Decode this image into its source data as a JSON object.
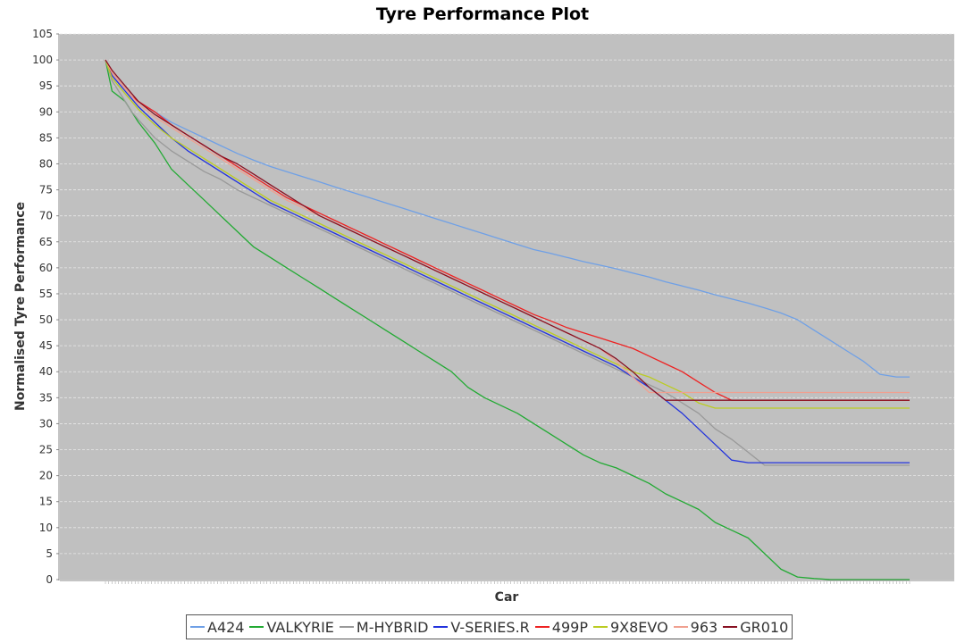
{
  "chart_data": {
    "type": "line",
    "title": "Tyre Performance Plot",
    "xlabel": "Car",
    "ylabel": "Normalised Tyre Performance",
    "ylim": [
      0,
      105
    ],
    "yticks": [
      "0",
      "5",
      "10",
      "15",
      "20",
      "25",
      "30",
      "35",
      "40",
      "45",
      "50",
      "55",
      "60",
      "65",
      "70",
      "75",
      "80",
      "85",
      "90",
      "95",
      "100",
      "105"
    ],
    "x_tick_labels_visible": false,
    "x": [
      0,
      2,
      4,
      6,
      8,
      10,
      15,
      20,
      25,
      30,
      35,
      40,
      45,
      50,
      55,
      60,
      65,
      70,
      75,
      80,
      85,
      90,
      95,
      100,
      105,
      110,
      115,
      120,
      125,
      130,
      135,
      140,
      145,
      150,
      155,
      160,
      165,
      170,
      175,
      180,
      185,
      190,
      195,
      200,
      205,
      210,
      215,
      220,
      225,
      230,
      235,
      240,
      244
    ],
    "grid": true,
    "background": "#c0c0c0",
    "gridline_color": "#e8e8e8",
    "legend_position": "bottom",
    "series": [
      {
        "name": "A424",
        "color": "#6fa0e6",
        "values": [
          100,
          97.5,
          96,
          94.5,
          93,
          92,
          90,
          88,
          86.5,
          85,
          83.5,
          82,
          80.7,
          79.5,
          78.5,
          77.5,
          76.5,
          75.5,
          74.5,
          73.5,
          72.5,
          71.5,
          70.5,
          69.5,
          68.5,
          67.5,
          66.5,
          65.5,
          64.5,
          63.5,
          62.8,
          62,
          61.2,
          60.5,
          59.8,
          59,
          58.2,
          57.3,
          56.5,
          55.7,
          54.8,
          54,
          53.2,
          52.3,
          51.3,
          50,
          48,
          46,
          44,
          42,
          39.5,
          39,
          39
        ]
      },
      {
        "name": "VALKYRIE",
        "color": "#22aa33",
        "values": [
          100,
          94,
          93,
          92,
          90,
          88,
          84,
          79,
          76,
          73,
          70,
          67,
          64,
          62,
          60,
          58,
          56,
          54,
          52,
          50,
          48,
          46,
          44,
          42,
          40,
          37,
          35,
          33.5,
          32,
          30,
          28,
          26,
          24,
          22.5,
          21.5,
          20,
          18.5,
          16.5,
          15,
          13.5,
          11,
          9.5,
          8,
          5,
          2,
          0.5,
          0.2,
          0,
          0,
          0,
          0,
          0,
          0
        ]
      },
      {
        "name": "M-HYBRID",
        "color": "#999999",
        "values": [
          100,
          96,
          94,
          92,
          90,
          88.5,
          85,
          82.5,
          80.5,
          78.5,
          77,
          75,
          73.5,
          72,
          70.5,
          69,
          67.5,
          66,
          64.5,
          63,
          61.5,
          60,
          58.5,
          57,
          55.5,
          54,
          52.5,
          51,
          49.5,
          48,
          46.5,
          45,
          43.5,
          42,
          40.5,
          39,
          37.5,
          36,
          34,
          32,
          29,
          27,
          24.5,
          22,
          22,
          22,
          22,
          22,
          22,
          22,
          22,
          22,
          22
        ]
      },
      {
        "name": "V-SERIES.R",
        "color": "#2233dd",
        "values": [
          100,
          97,
          95.5,
          94,
          92.5,
          91,
          88,
          85,
          82.5,
          80.5,
          78.5,
          76.5,
          74.5,
          72.5,
          71,
          69.5,
          68,
          66.5,
          65,
          63.5,
          62,
          60.5,
          59,
          57.5,
          56,
          54.5,
          53,
          51.5,
          50,
          48.5,
          47,
          45.5,
          44,
          42.5,
          41,
          39,
          37,
          34.5,
          32,
          29,
          26,
          23,
          22.5,
          22.5,
          22.5,
          22.5,
          22.5,
          22.5,
          22.5,
          22.5,
          22.5,
          22.5,
          22.5
        ]
      },
      {
        "name": "499P",
        "color": "#ee2222",
        "values": [
          100,
          97.5,
          96,
          94.5,
          93,
          92,
          90,
          87.5,
          85.5,
          83.5,
          81.5,
          79.5,
          77.5,
          75.5,
          73.5,
          72,
          70.5,
          69,
          67.5,
          66,
          64.5,
          63,
          61.5,
          60,
          58.5,
          57,
          55.5,
          54,
          52.5,
          51,
          49.8,
          48.5,
          47.5,
          46.5,
          45.5,
          44.5,
          43,
          41.5,
          40,
          38,
          36,
          34.5,
          34.5,
          34.5,
          34.5,
          34.5,
          34.5,
          34.5,
          34.5,
          34.5,
          34.5,
          34.5,
          34.5
        ]
      },
      {
        "name": "9X8EVO",
        "color": "#bbcc22",
        "values": [
          100,
          96.5,
          95,
          93.5,
          92,
          90.5,
          87.5,
          85,
          83,
          81,
          79,
          77,
          75,
          73,
          71.5,
          70,
          68.5,
          67,
          65.5,
          64,
          62.5,
          61,
          59.5,
          58,
          56.5,
          55,
          53.5,
          52,
          50.5,
          49,
          47.5,
          46,
          44.5,
          43,
          41.5,
          40,
          39,
          37.5,
          36,
          34,
          33,
          33,
          33,
          33,
          33,
          33,
          33,
          33,
          33,
          33,
          33,
          33,
          33
        ]
      },
      {
        "name": "963",
        "color": "#f0a090",
        "values": [
          100,
          97.5,
          96,
          94.5,
          93,
          91.5,
          89,
          87,
          85,
          83,
          81,
          79,
          77,
          75,
          73,
          71.5,
          70,
          68.5,
          67,
          65.5,
          64,
          62.5,
          61,
          59.5,
          58,
          56.5,
          55,
          53.5,
          52,
          50.5,
          49,
          47.5,
          46,
          44.5,
          42,
          39,
          36,
          36,
          36,
          36,
          36,
          36,
          36,
          36,
          36,
          36,
          36,
          36,
          36,
          36,
          36,
          36,
          36
        ]
      },
      {
        "name": "GR010",
        "color": "#881122",
        "values": [
          100,
          98,
          96.5,
          95,
          93.5,
          92,
          89.5,
          87.5,
          85.5,
          83.5,
          81.5,
          80,
          78,
          76,
          74,
          72,
          70,
          68.5,
          67,
          65.5,
          64,
          62.5,
          61,
          59.5,
          58,
          56.5,
          55,
          53.5,
          52,
          50.5,
          49,
          47.5,
          46,
          44.5,
          42.5,
          40,
          37,
          34.5,
          34.5,
          34.5,
          34.5,
          34.5,
          34.5,
          34.5,
          34.5,
          34.5,
          34.5,
          34.5,
          34.5,
          34.5,
          34.5,
          34.5,
          34.5
        ]
      }
    ]
  }
}
